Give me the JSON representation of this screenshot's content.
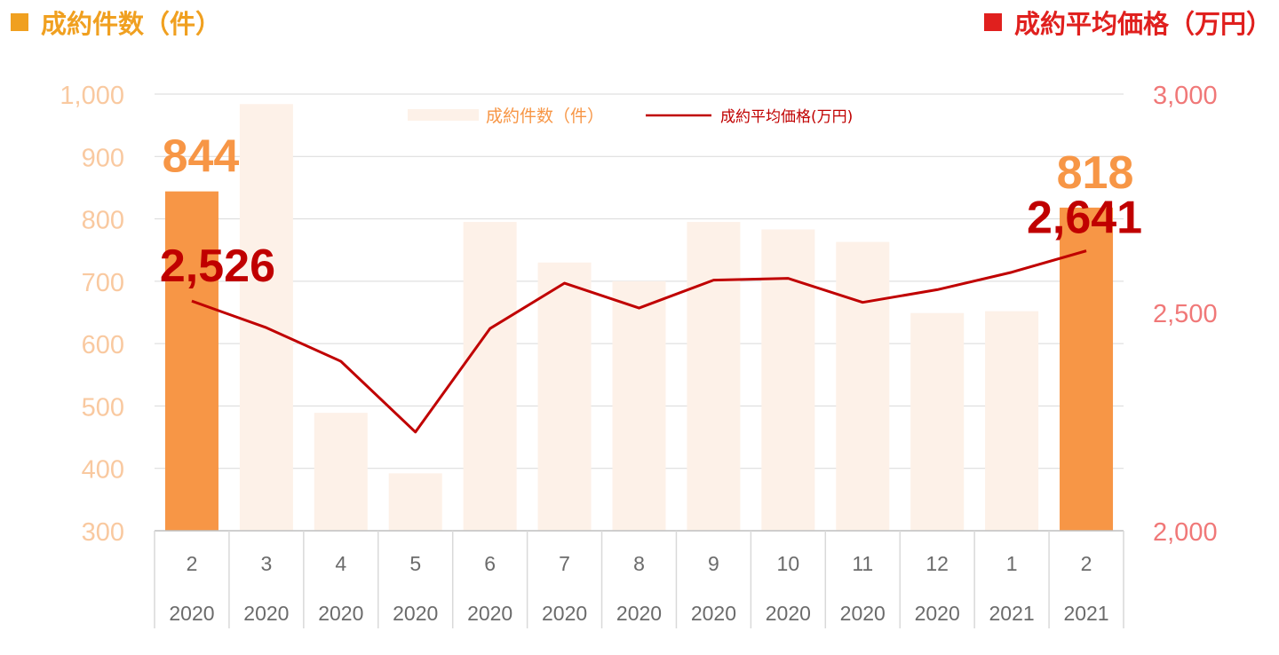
{
  "headers": {
    "left": "成約件数（件）",
    "right": "成約平均価格（万円）"
  },
  "colors": {
    "bar_highlight": "#F79646",
    "bar_faded": "#FDF1E8",
    "line": "#C00000",
    "left_axis": "#F9C9A0",
    "right_axis": "#F07878",
    "left_header": "#F0A020",
    "right_header": "#E0201E",
    "label_count": "#F79646",
    "label_price": "#C00000"
  },
  "chart_data": {
    "type": "bar",
    "categories": [
      {
        "month": "2",
        "year": "2020"
      },
      {
        "month": "3",
        "year": "2020"
      },
      {
        "month": "4",
        "year": "2020"
      },
      {
        "month": "5",
        "year": "2020"
      },
      {
        "month": "6",
        "year": "2020"
      },
      {
        "month": "7",
        "year": "2020"
      },
      {
        "month": "8",
        "year": "2020"
      },
      {
        "month": "9",
        "year": "2020"
      },
      {
        "month": "10",
        "year": "2020"
      },
      {
        "month": "11",
        "year": "2020"
      },
      {
        "month": "12",
        "year": "2020"
      },
      {
        "month": "1",
        "year": "2021"
      },
      {
        "month": "2",
        "year": "2021"
      }
    ],
    "series": [
      {
        "name": "成約件数（件）",
        "type": "bar",
        "axis": "left",
        "values": [
          844,
          984,
          489,
          392,
          795,
          730,
          700,
          795,
          783,
          763,
          649,
          652,
          818
        ],
        "highlight": [
          true,
          false,
          false,
          false,
          false,
          false,
          false,
          false,
          false,
          false,
          false,
          false,
          true
        ]
      },
      {
        "name": "成約平均価格(万円)",
        "type": "line",
        "axis": "right",
        "values": [
          2526,
          2465,
          2388,
          2226,
          2463,
          2567,
          2510,
          2574,
          2578,
          2523,
          2552,
          2592,
          2641
        ]
      }
    ],
    "data_labels": [
      {
        "series": 0,
        "index": 0,
        "text": "844"
      },
      {
        "series": 0,
        "index": 12,
        "text": "818"
      },
      {
        "series": 1,
        "index": 0,
        "text": "2,526"
      },
      {
        "series": 1,
        "index": 12,
        "text": "2,641"
      }
    ],
    "y_left": {
      "min": 300,
      "max": 1000,
      "ticks": [
        "300",
        "400",
        "500",
        "600",
        "700",
        "800",
        "900",
        "1,000"
      ]
    },
    "y_right": {
      "min": 2000,
      "max": 3000,
      "ticks": [
        "2,000",
        "2,500",
        "3,000"
      ]
    },
    "grid": true,
    "legend_position": "top-center"
  }
}
